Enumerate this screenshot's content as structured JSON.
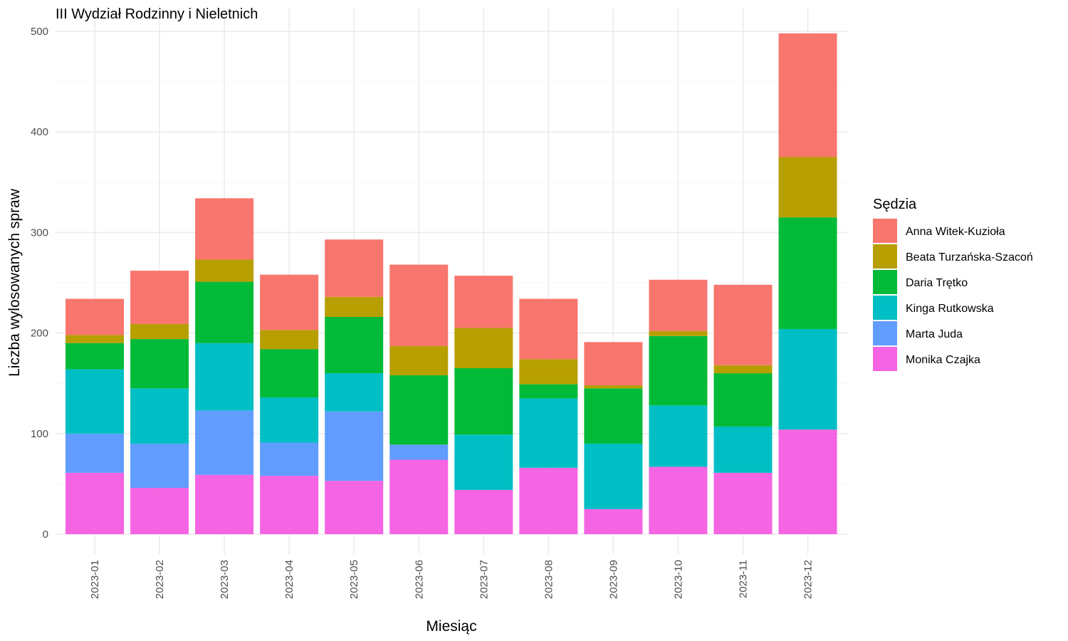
{
  "chart_data": {
    "type": "bar",
    "stacked": true,
    "title": "III Wydział Rodzinny i Nieletnich",
    "xlabel": "Miesiąc",
    "ylabel": "Liczba wylosowanych spraw",
    "ylim": [
      0,
      500
    ],
    "yticks": [
      0,
      100,
      200,
      300,
      400,
      500
    ],
    "grid": true,
    "legend_position": "right",
    "legend_title": "Sędzia",
    "categories": [
      "2023-01",
      "2023-02",
      "2023-03",
      "2023-04",
      "2023-05",
      "2023-06",
      "2023-07",
      "2023-08",
      "2023-09",
      "2023-10",
      "2023-11",
      "2023-12"
    ],
    "series": [
      {
        "name": "Anna Witek-Kuzioła",
        "color": "#F8766D",
        "values": [
          36,
          53,
          61,
          55,
          57,
          81,
          52,
          60,
          43,
          51,
          80,
          123
        ]
      },
      {
        "name": "Beata Turzańska-Szacoń",
        "color": "#B79F00",
        "values": [
          8,
          15,
          22,
          19,
          20,
          29,
          40,
          25,
          3,
          5,
          8,
          60
        ]
      },
      {
        "name": "Daria Trętko",
        "color": "#00BA38",
        "values": [
          26,
          49,
          61,
          48,
          56,
          69,
          66,
          14,
          55,
          69,
          53,
          111
        ]
      },
      {
        "name": "Kinga Rutkowska",
        "color": "#00BFC4",
        "values": [
          64,
          55,
          67,
          45,
          38,
          0,
          55,
          69,
          65,
          61,
          46,
          100
        ]
      },
      {
        "name": "Marta Juda",
        "color": "#619CFF",
        "values": [
          39,
          44,
          64,
          33,
          69,
          15,
          0,
          0,
          0,
          0,
          0,
          0
        ]
      },
      {
        "name": "Monika Czajka",
        "color": "#F564E3",
        "values": [
          61,
          46,
          59,
          58,
          53,
          74,
          44,
          66,
          25,
          67,
          61,
          104
        ]
      }
    ]
  }
}
